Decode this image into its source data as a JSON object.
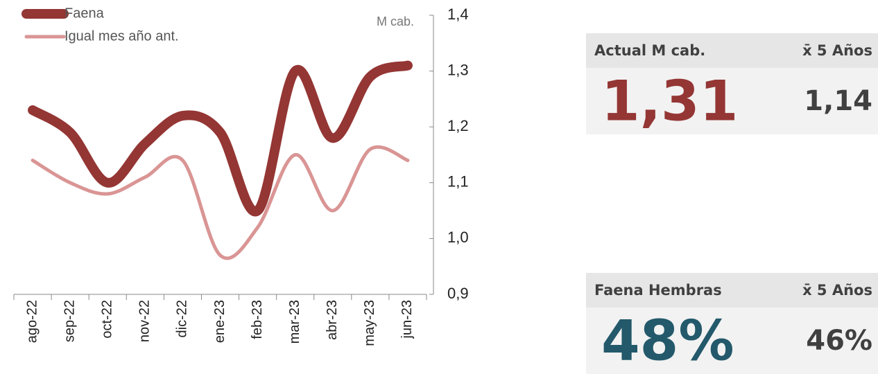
{
  "chart_data": {
    "type": "line",
    "y_label": "M cab.",
    "categories": [
      "ago-22",
      "sep-22",
      "oct-22",
      "nov-22",
      "dic-22",
      "ene-23",
      "feb-23",
      "mar-23",
      "abr-23",
      "may-23",
      "jun-23"
    ],
    "series": [
      {
        "name": "Faena",
        "color": "#943634",
        "values": [
          1.23,
          1.19,
          1.1,
          1.17,
          1.22,
          1.19,
          1.05,
          1.3,
          1.18,
          1.29,
          1.31
        ]
      },
      {
        "name": "Igual mes año ant.",
        "color": "#d99594",
        "values": [
          1.14,
          1.1,
          1.08,
          1.11,
          1.14,
          0.97,
          1.02,
          1.15,
          1.05,
          1.16,
          1.14
        ]
      }
    ],
    "ylim": [
      0.9,
      1.4
    ],
    "yticks": [
      {
        "value": 0.9,
        "label": "0,9"
      },
      {
        "value": 1.0,
        "label": "1,0"
      },
      {
        "value": 1.1,
        "label": "1,1"
      },
      {
        "value": 1.2,
        "label": "1,2"
      },
      {
        "value": 1.3,
        "label": "1,3"
      },
      {
        "value": 1.4,
        "label": "1,4"
      }
    ],
    "legend": "upper-left"
  },
  "panels": [
    {
      "header": "Actual M cab.",
      "avg_header": "x̄ 5 Años",
      "value": "1,31",
      "avg": "1,14",
      "color": "#943634"
    },
    {
      "header": "Faena Hembras",
      "avg_header": "x̄ 5 Años",
      "value": "48%",
      "avg": "46%",
      "color": "#23596b"
    }
  ]
}
